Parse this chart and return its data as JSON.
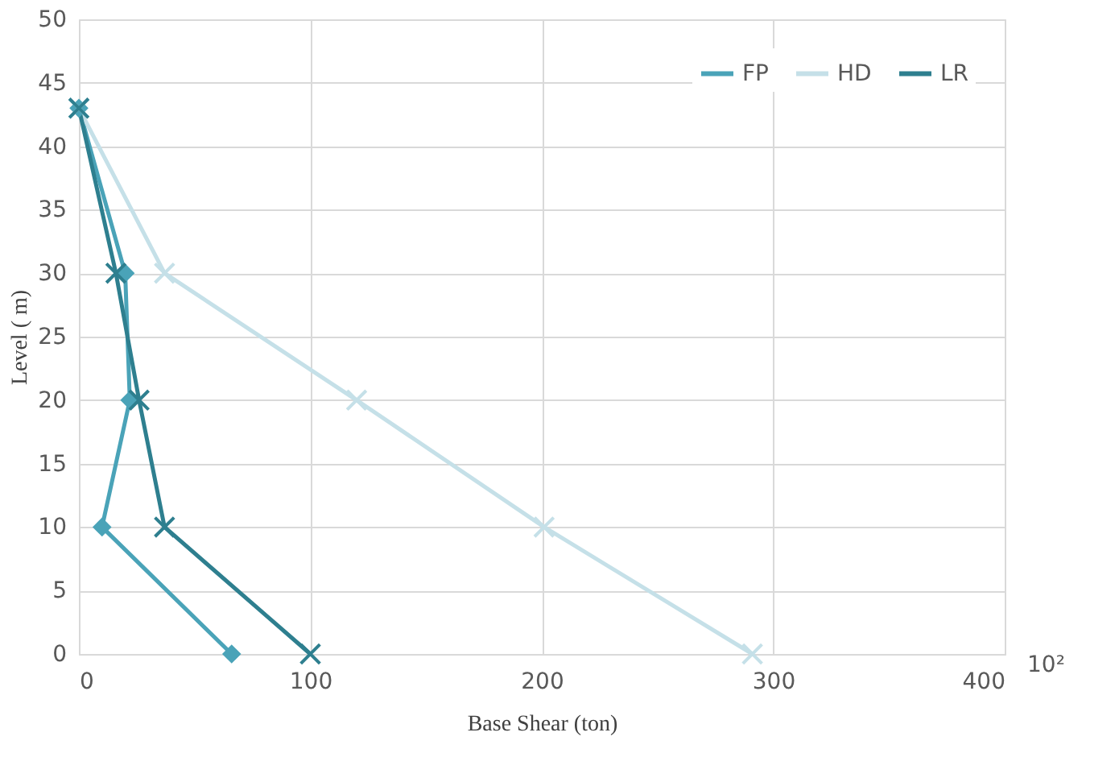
{
  "chart_data": {
    "type": "line",
    "xlabel": "Base Shear (ton)",
    "ylabel": "Level ( m)",
    "annotations": [
      "10²"
    ],
    "xlim": [
      0,
      400
    ],
    "xticks": [
      0,
      100,
      200,
      300,
      400
    ],
    "ylim": [
      0,
      50
    ],
    "yticks": [
      0,
      5,
      10,
      15,
      20,
      25,
      30,
      35,
      40,
      45,
      50
    ],
    "grid": true,
    "legend": "top right",
    "line_style": "solid",
    "series": [
      {
        "name": "FP",
        "color": "#4aa3b8",
        "marker": "diamond",
        "x": [
          0,
          20,
          22,
          10,
          66
        ],
        "values": [
          43,
          30,
          20,
          10,
          0
        ]
      },
      {
        "name": "HD",
        "color": "#c5e0e8",
        "marker": "cross",
        "x": [
          0,
          37,
          120,
          201,
          291
        ],
        "values": [
          43,
          30,
          20,
          10,
          0
        ]
      },
      {
        "name": "LR",
        "color": "#2e7f8f",
        "marker": "cross",
        "x": [
          0,
          16,
          26,
          37,
          100
        ],
        "values": [
          43,
          30,
          20,
          10,
          0
        ]
      }
    ]
  }
}
